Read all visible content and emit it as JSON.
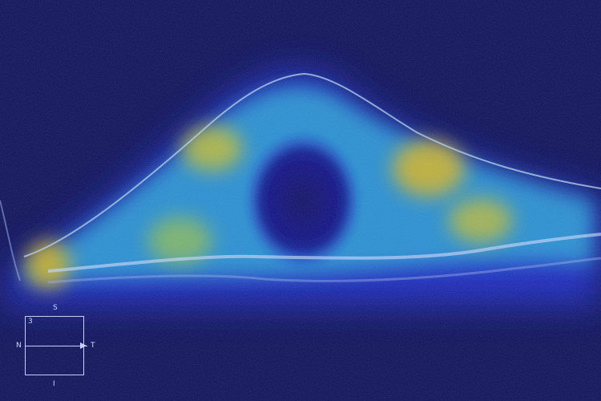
{
  "scan": {
    "type": "OCT retinal B-scan with heatmap overlay",
    "palette": {
      "background": "#0a0d58",
      "low": "#1b2bd6",
      "mid": "#2fb7d8",
      "high": "#d8c11a",
      "retina": "#a7c8f0"
    }
  },
  "orientation": {
    "number": "3",
    "superior": "S",
    "inferior": "I",
    "nasal": "N",
    "temporal": "T"
  }
}
